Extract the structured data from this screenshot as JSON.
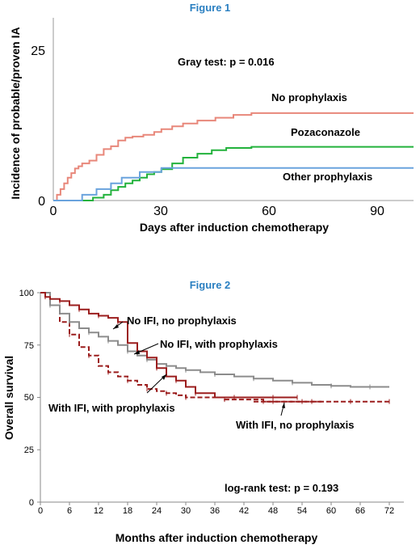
{
  "chart_data": [
    {
      "type": "line",
      "title": "Figure 1",
      "xlabel": "Days after induction chemotherapy",
      "ylabel": "Incidence of probable/proven IA",
      "xlim": [
        0,
        100
      ],
      "ylim": [
        0,
        32
      ],
      "x_ticks": [
        0,
        30,
        60,
        90
      ],
      "y_ticks": [
        0,
        25
      ],
      "annotation": "Gray test: p = 0.016",
      "series": [
        {
          "name": "No prophylaxis",
          "color": "#e8877a",
          "x": [
            0,
            1,
            2,
            3,
            4,
            5,
            6,
            7,
            8,
            10,
            12,
            14,
            16,
            18,
            20,
            22,
            25,
            28,
            30,
            33,
            36,
            40,
            45,
            50,
            55,
            100
          ],
          "y": [
            0,
            1,
            2,
            3,
            4,
            4.8,
            5.6,
            6,
            6.5,
            7,
            8,
            9,
            9.5,
            10.5,
            11,
            11.2,
            11.5,
            12,
            12.5,
            13,
            13.5,
            14,
            14.5,
            15,
            15.3,
            15.3
          ]
        },
        {
          "name": "Pozaconazole",
          "color": "#23b23c",
          "x": [
            0,
            8,
            11,
            14,
            16,
            18,
            20,
            22,
            24,
            26,
            28,
            30,
            33,
            36,
            40,
            44,
            48,
            55,
            100
          ],
          "y": [
            0,
            0,
            0.5,
            1,
            1.8,
            2.4,
            3,
            3.5,
            4,
            4.6,
            5,
            5.5,
            6.5,
            7.5,
            8.2,
            8.8,
            9.2,
            9.4,
            9.4
          ]
        },
        {
          "name": "Other prophylaxis",
          "color": "#6aa3dd",
          "x": [
            0,
            8,
            12,
            16,
            19,
            24,
            30,
            36,
            100
          ],
          "y": [
            0,
            1,
            2,
            3,
            4,
            5,
            5.7,
            5.7,
            5.7
          ]
        }
      ]
    },
    {
      "type": "line",
      "title": "Figure 2",
      "xlabel": "Months after induction chemotherapy",
      "ylabel": "Overall survival",
      "xlim": [
        0,
        75
      ],
      "ylim": [
        0,
        100
      ],
      "x_ticks": [
        0,
        6,
        12,
        18,
        24,
        30,
        36,
        42,
        48,
        54,
        60,
        66,
        72
      ],
      "y_ticks": [
        0,
        25,
        50,
        75,
        100
      ],
      "annotation": "log-rank test: p = 0.193",
      "series": [
        {
          "name": "No IFI, no prophylaxis",
          "color": "#9b1d1d",
          "dash": false,
          "x": [
            0,
            1,
            2,
            4,
            6,
            8,
            10,
            12,
            14,
            16,
            18,
            20,
            22,
            24,
            26,
            28,
            30,
            32,
            36,
            40,
            44,
            48,
            52,
            53
          ],
          "y": [
            100,
            98,
            97,
            96,
            94,
            92,
            90,
            89,
            88,
            86,
            76,
            72,
            69,
            64,
            60,
            58,
            55,
            52,
            50,
            50,
            50,
            50,
            50,
            50
          ]
        },
        {
          "name": "No IFI, with prophylaxis",
          "color": "#8c8c8c",
          "dash": false,
          "x": [
            0,
            2,
            4,
            6,
            8,
            10,
            12,
            14,
            16,
            18,
            20,
            22,
            24,
            26,
            28,
            30,
            33,
            36,
            40,
            44,
            48,
            52,
            56,
            60,
            64,
            68,
            72
          ],
          "y": [
            100,
            94,
            90,
            86,
            83,
            81,
            79,
            77,
            75,
            72,
            70,
            68,
            66,
            65,
            64,
            63,
            62,
            61,
            60,
            59,
            58,
            57,
            56,
            55.5,
            55,
            55,
            55
          ]
        },
        {
          "name": "With IFI, with prophylaxis",
          "color": "#9b1d1d",
          "dash": true,
          "x": [
            0,
            2,
            4,
            6,
            8,
            10,
            12,
            14,
            16,
            18,
            20,
            22,
            24,
            26,
            28,
            30,
            34,
            38,
            42,
            46,
            50,
            54,
            58
          ],
          "y": [
            100,
            94,
            86,
            80,
            74,
            70,
            65,
            62,
            60,
            58,
            56,
            54,
            53,
            52,
            51,
            50,
            50,
            49,
            49,
            48,
            48,
            48,
            48
          ]
        },
        {
          "name": "With IFI, no prophylaxis",
          "color": "#9b1d1d",
          "dash": true,
          "x": [
            44,
            48,
            52,
            56,
            60,
            64,
            68,
            72
          ],
          "y": [
            48,
            48,
            48,
            48,
            48,
            48,
            48,
            48
          ]
        }
      ]
    }
  ]
}
